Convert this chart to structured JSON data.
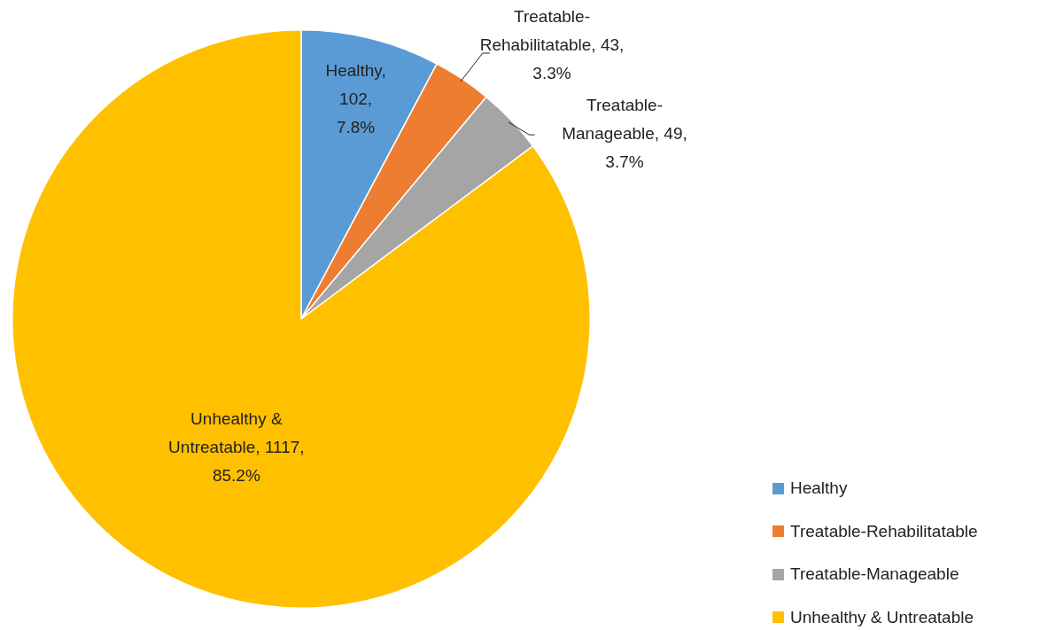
{
  "chart_data": {
    "type": "pie",
    "categories": [
      "Healthy",
      "Treatable-Rehabilitatable",
      "Treatable-Manageable",
      "Unhealthy & Untreatable"
    ],
    "values": [
      102,
      43,
      49,
      1117
    ],
    "colors": [
      "#5b9bd5",
      "#ed7d31",
      "#a5a5a5",
      "#ffc000"
    ],
    "value_labels": [
      "Healthy,\n102,\n7.8%",
      "Treatable-\nRehabilitatable, 43,\n3.3%",
      "Treatable-\nManageable, 49,\n3.7%",
      "Unhealthy &\nUntreatable, 1117,\n85.2%"
    ],
    "legend": "bottom right"
  }
}
